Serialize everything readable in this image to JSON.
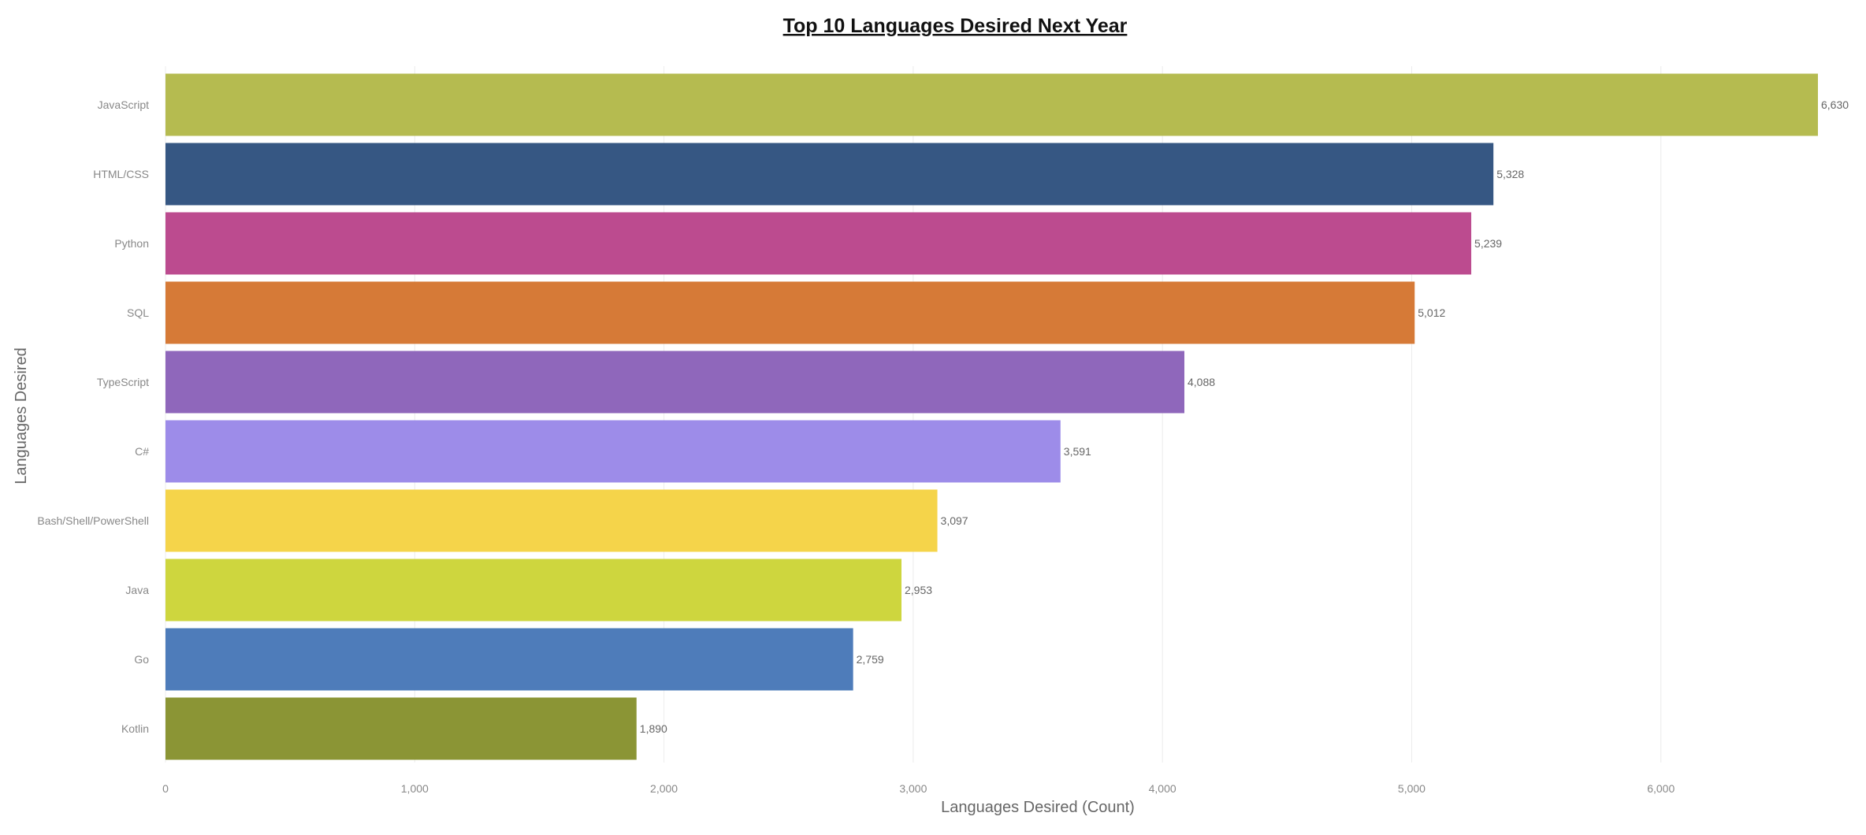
{
  "chart_data": {
    "type": "bar",
    "orientation": "horizontal",
    "title": "Top 10 Languages Desired Next Year",
    "xlabel": "Languages Desired (Count)",
    "ylabel": "Languages Desired",
    "categories": [
      "JavaScript",
      "HTML/CSS",
      "Python",
      "SQL",
      "TypeScript",
      "C#",
      "Bash/Shell/PowerShell",
      "Java",
      "Go",
      "Kotlin"
    ],
    "values": [
      6630,
      5328,
      5239,
      5012,
      4088,
      3591,
      3097,
      2953,
      2759,
      1890
    ],
    "value_labels": [
      "6,630",
      "5,328",
      "5,239",
      "5,012",
      "4,088",
      "3,591",
      "3,097",
      "2,953",
      "2,759",
      "1,890"
    ],
    "colors": [
      "#b5bb50",
      "#365783",
      "#bc4b8f",
      "#d67a37",
      "#8f67bb",
      "#9d8ce9",
      "#f5d44a",
      "#ced63e",
      "#4e7cba",
      "#8b9535"
    ],
    "xlim": [
      0,
      6630
    ],
    "xticks": [
      0,
      1000,
      2000,
      3000,
      4000,
      5000,
      6000
    ],
    "xtick_labels": [
      "0",
      "1,000",
      "2,000",
      "3,000",
      "4,000",
      "5,000",
      "6,000"
    ],
    "grid": "vertical",
    "legend": "none"
  }
}
